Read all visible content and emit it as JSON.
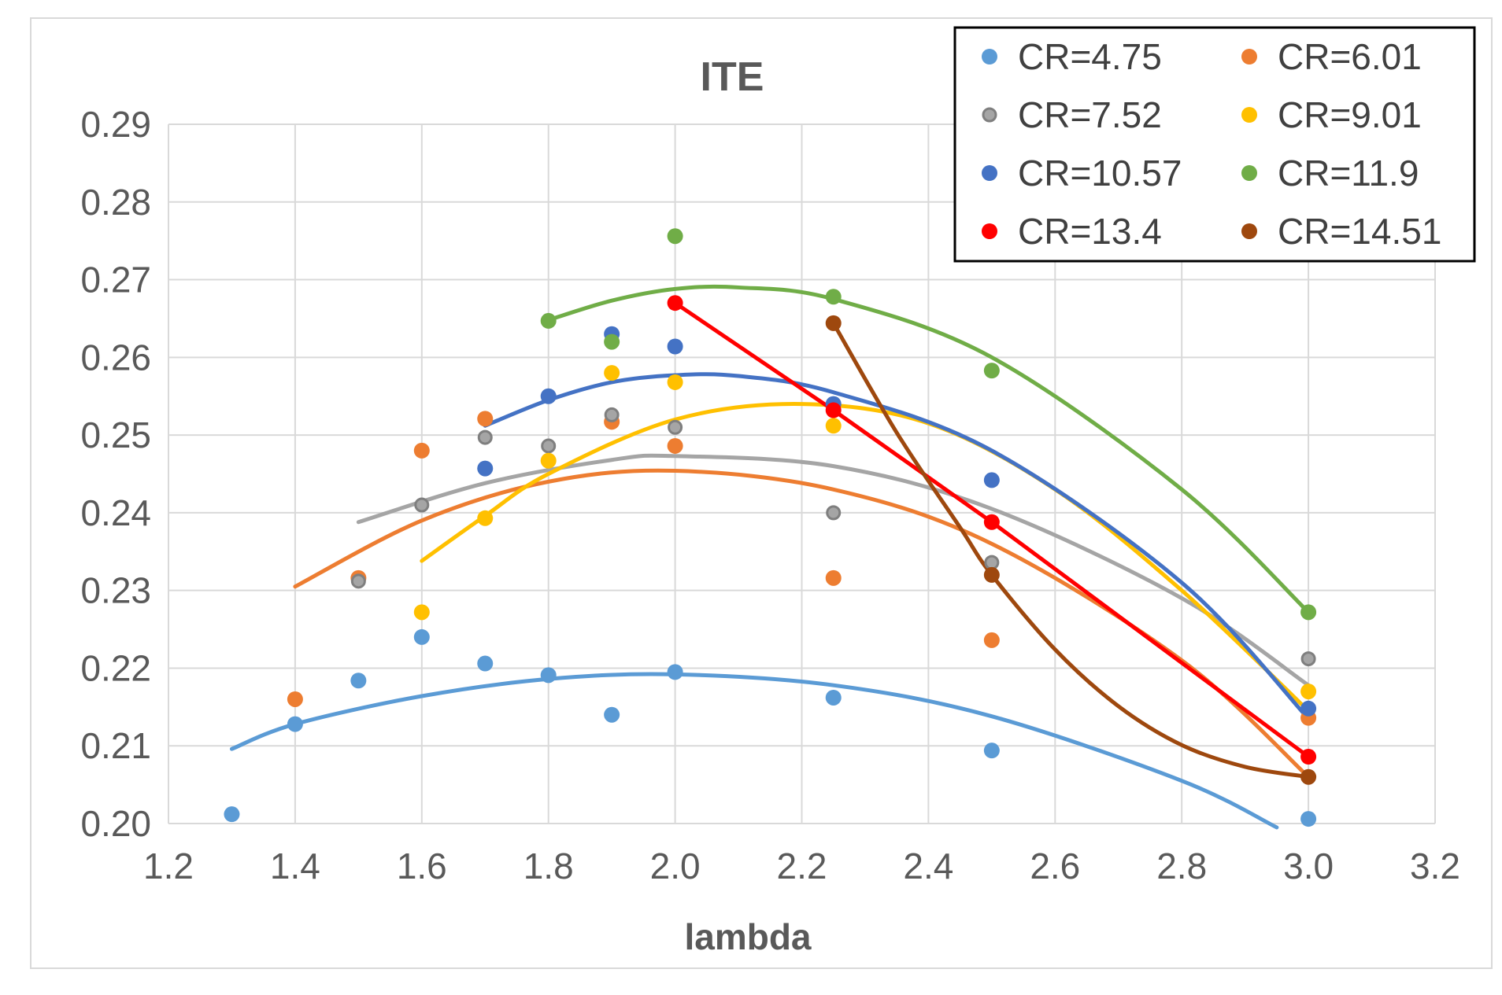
{
  "chart_data": {
    "type": "scatter",
    "title": "ITE",
    "xlabel": "lambda",
    "ylabel": "",
    "xlim": [
      1.2,
      3.2
    ],
    "ylim": [
      0.2,
      0.29
    ],
    "xticks": [
      "1.2",
      "1.4",
      "1.6",
      "1.8",
      "2.0",
      "2.2",
      "2.4",
      "2.6",
      "2.8",
      "3.0",
      "3.2"
    ],
    "yticks": [
      "0.20",
      "0.21",
      "0.22",
      "0.23",
      "0.24",
      "0.25",
      "0.26",
      "0.27",
      "0.28",
      "0.29"
    ],
    "grid": true,
    "legend_position": "top-right",
    "series": [
      {
        "name": "CR=4.75",
        "color": "#5b9bd5",
        "x": [
          1.3,
          1.4,
          1.5,
          1.6,
          1.7,
          1.8,
          1.9,
          2.0,
          2.25,
          2.5,
          3.0
        ],
        "y": [
          0.2012,
          0.2128,
          0.2184,
          0.224,
          0.2206,
          0.2191,
          0.214,
          0.2195,
          0.2162,
          0.2094,
          0.2006
        ],
        "trend": {
          "type": "poly",
          "x": [
            1.3,
            1.4,
            1.6,
            1.8,
            2.0,
            2.25,
            2.5,
            2.8,
            2.95
          ],
          "y": [
            0.2096,
            0.2128,
            0.2164,
            0.2186,
            0.2192,
            0.2178,
            0.2138,
            0.2055,
            0.1995
          ]
        }
      },
      {
        "name": "CR=6.01",
        "color": "#ed7d31",
        "x": [
          1.4,
          1.5,
          1.6,
          1.7,
          1.9,
          2.0,
          2.25,
          2.5,
          3.0
        ],
        "y": [
          0.216,
          0.2316,
          0.248,
          0.2521,
          0.2517,
          0.2486,
          0.2316,
          0.2236,
          0.2136
        ],
        "trend": {
          "type": "poly",
          "x": [
            1.4,
            1.6,
            1.8,
            2.0,
            2.25,
            2.5,
            2.8,
            3.0
          ],
          "y": [
            0.2305,
            0.239,
            0.244,
            0.2454,
            0.243,
            0.236,
            0.221,
            0.206
          ]
        }
      },
      {
        "name": "CR=7.52",
        "color": "#a5a5a5",
        "x": [
          1.5,
          1.6,
          1.7,
          1.8,
          1.9,
          2.0,
          2.25,
          2.5,
          3.0
        ],
        "y": [
          0.2312,
          0.241,
          0.2497,
          0.2486,
          0.2526,
          0.251,
          0.24,
          0.2336,
          0.2212
        ],
        "trend": {
          "type": "poly",
          "x": [
            1.5,
            1.7,
            1.9,
            2.0,
            2.25,
            2.5,
            2.8,
            3.0
          ],
          "y": [
            0.2388,
            0.2438,
            0.2468,
            0.2473,
            0.246,
            0.2405,
            0.229,
            0.2178
          ]
        }
      },
      {
        "name": "CR=9.01",
        "color": "#ffc000",
        "x": [
          1.6,
          1.7,
          1.8,
          1.9,
          2.0,
          2.25,
          3.0
        ],
        "y": [
          0.2272,
          0.2393,
          0.2467,
          0.258,
          0.2568,
          0.2512,
          0.217
        ],
        "trend": {
          "type": "poly",
          "x": [
            1.6,
            1.7,
            1.8,
            2.0,
            2.2,
            2.4,
            2.6,
            2.8,
            3.0
          ],
          "y": [
            0.2338,
            0.2396,
            0.245,
            0.252,
            0.254,
            0.2515,
            0.243,
            0.23,
            0.2145
          ]
        }
      },
      {
        "name": "CR=10.57",
        "color": "#4472c4",
        "x": [
          1.7,
          1.8,
          1.9,
          2.0,
          2.25,
          2.5,
          3.0
        ],
        "y": [
          0.2457,
          0.255,
          0.263,
          0.2614,
          0.254,
          0.2442,
          0.2148
        ],
        "trend": {
          "type": "poly",
          "x": [
            1.7,
            1.8,
            1.9,
            2.0,
            2.1,
            2.25,
            2.5,
            2.8,
            3.0
          ],
          "y": [
            0.2512,
            0.2545,
            0.2568,
            0.2577,
            0.2576,
            0.2555,
            0.248,
            0.231,
            0.2135
          ]
        }
      },
      {
        "name": "CR=11.9",
        "color": "#70ad47",
        "x": [
          1.8,
          1.9,
          2.0,
          2.25,
          2.5,
          3.0
        ],
        "y": [
          0.2647,
          0.262,
          0.2756,
          0.2678,
          0.2583,
          0.2272
        ],
        "trend": {
          "type": "poly",
          "x": [
            1.8,
            1.9,
            2.0,
            2.1,
            2.25,
            2.5,
            2.8,
            3.0
          ],
          "y": [
            0.2648,
            0.2673,
            0.2688,
            0.269,
            0.2675,
            0.26,
            0.243,
            0.2272
          ]
        }
      },
      {
        "name": "CR=13.4",
        "color": "#ff0000",
        "x": [
          2.0,
          2.25,
          2.5,
          3.0
        ],
        "y": [
          0.267,
          0.2532,
          0.2388,
          0.2086
        ],
        "trend": {
          "type": "line",
          "x": [
            2.0,
            2.25,
            2.5,
            3.0
          ],
          "y": [
            0.267,
            0.2532,
            0.2388,
            0.2086
          ]
        }
      },
      {
        "name": "CR=14.51",
        "color": "#9e480e",
        "x": [
          2.25,
          2.5,
          3.0
        ],
        "y": [
          0.2644,
          0.232,
          0.206
        ],
        "trend": {
          "type": "poly",
          "x": [
            2.25,
            2.35,
            2.45,
            2.5,
            2.6,
            2.7,
            2.8,
            2.9,
            3.0
          ],
          "y": [
            0.2644,
            0.2503,
            0.2381,
            0.232,
            0.2224,
            0.2151,
            0.2101,
            0.2073,
            0.206
          ]
        }
      }
    ]
  }
}
